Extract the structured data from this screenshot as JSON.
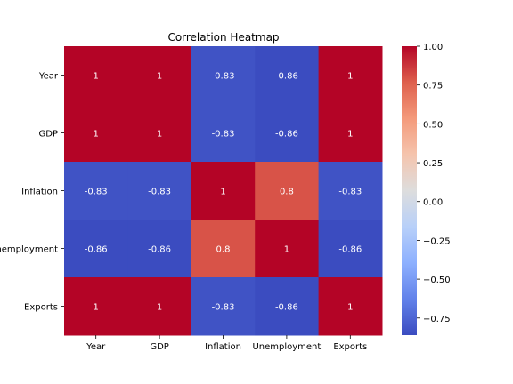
{
  "chart_data": {
    "type": "heatmap",
    "title": "Correlation Heatmap",
    "xlabel": "",
    "ylabel": "",
    "x_categories": [
      "Year",
      "GDP",
      "Inflation",
      "Unemployment",
      "Exports"
    ],
    "y_categories": [
      "Year",
      "GDP",
      "Inflation",
      "Unemployment",
      "Exports"
    ],
    "values": [
      [
        1,
        1,
        -0.83,
        -0.86,
        1
      ],
      [
        1,
        1,
        -0.83,
        -0.86,
        1
      ],
      [
        -0.83,
        -0.83,
        1,
        0.8,
        -0.83
      ],
      [
        -0.86,
        -0.86,
        0.8,
        1,
        -0.86
      ],
      [
        1,
        1,
        -0.83,
        -0.86,
        1
      ]
    ],
    "colormap": "coolwarm",
    "vmin": -0.86,
    "vmax": 1.0,
    "colorbar_ticks": [
      1.0,
      0.75,
      0.5,
      0.25,
      0.0,
      -0.25,
      -0.5,
      -0.75
    ],
    "colorbar_tick_labels": [
      "1.00",
      "0.75",
      "0.50",
      "0.25",
      "0.00",
      "−0.25",
      "−0.50",
      "−0.75"
    ],
    "annotations": true
  }
}
